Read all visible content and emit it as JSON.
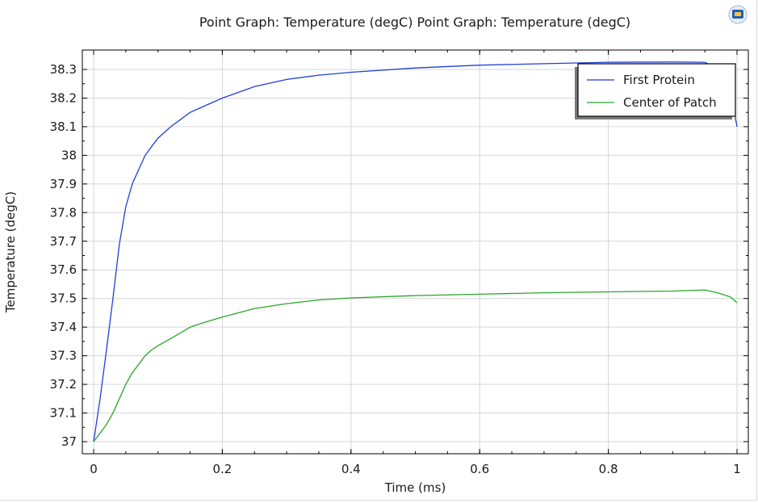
{
  "chart_data": {
    "type": "line",
    "title": "Point Graph: Temperature (degC)  Point Graph: Temperature (degC)",
    "xlabel": "Time (ms)",
    "ylabel": "Temperature (degC)",
    "xlim": [
      0,
      1
    ],
    "ylim": [
      37,
      38.3
    ],
    "x_ticks": [
      "0",
      "0.2",
      "0.4",
      "0.6",
      "0.8",
      "1"
    ],
    "y_ticks": [
      "37",
      "37.1",
      "37.2",
      "37.3",
      "37.4",
      "37.5",
      "37.6",
      "37.7",
      "37.8",
      "37.9",
      "38",
      "38.1",
      "38.2",
      "38.3"
    ],
    "grid": true,
    "legend_position": "top-right",
    "series": [
      {
        "name": "First Protein",
        "color": "#1f3fd8",
        "x": [
          0,
          0.01,
          0.02,
          0.03,
          0.04,
          0.05,
          0.06,
          0.07,
          0.08,
          0.09,
          0.1,
          0.12,
          0.15,
          0.17,
          0.2,
          0.25,
          0.3,
          0.35,
          0.4,
          0.5,
          0.6,
          0.7,
          0.8,
          0.9,
          0.95,
          0.97,
          0.99,
          1.0
        ],
        "y": [
          37.0,
          37.15,
          37.32,
          37.5,
          37.69,
          37.82,
          37.9,
          37.95,
          38.0,
          38.03,
          38.06,
          38.1,
          38.15,
          38.17,
          38.2,
          38.24,
          38.265,
          38.28,
          38.29,
          38.305,
          38.315,
          38.32,
          38.325,
          38.326,
          38.325,
          38.3,
          38.22,
          38.1
        ]
      },
      {
        "name": "Center of Patch",
        "color": "#2aa52a",
        "x": [
          0,
          0.01,
          0.02,
          0.03,
          0.04,
          0.05,
          0.06,
          0.07,
          0.08,
          0.09,
          0.1,
          0.12,
          0.15,
          0.17,
          0.2,
          0.25,
          0.3,
          0.35,
          0.4,
          0.5,
          0.6,
          0.7,
          0.8,
          0.9,
          0.95,
          0.97,
          0.99,
          1.0
        ],
        "y": [
          37.0,
          37.03,
          37.06,
          37.1,
          37.15,
          37.2,
          37.24,
          37.27,
          37.3,
          37.32,
          37.335,
          37.36,
          37.4,
          37.415,
          37.435,
          37.465,
          37.482,
          37.495,
          37.502,
          37.51,
          37.515,
          37.52,
          37.523,
          37.526,
          37.53,
          37.52,
          37.505,
          37.485
        ]
      }
    ]
  }
}
